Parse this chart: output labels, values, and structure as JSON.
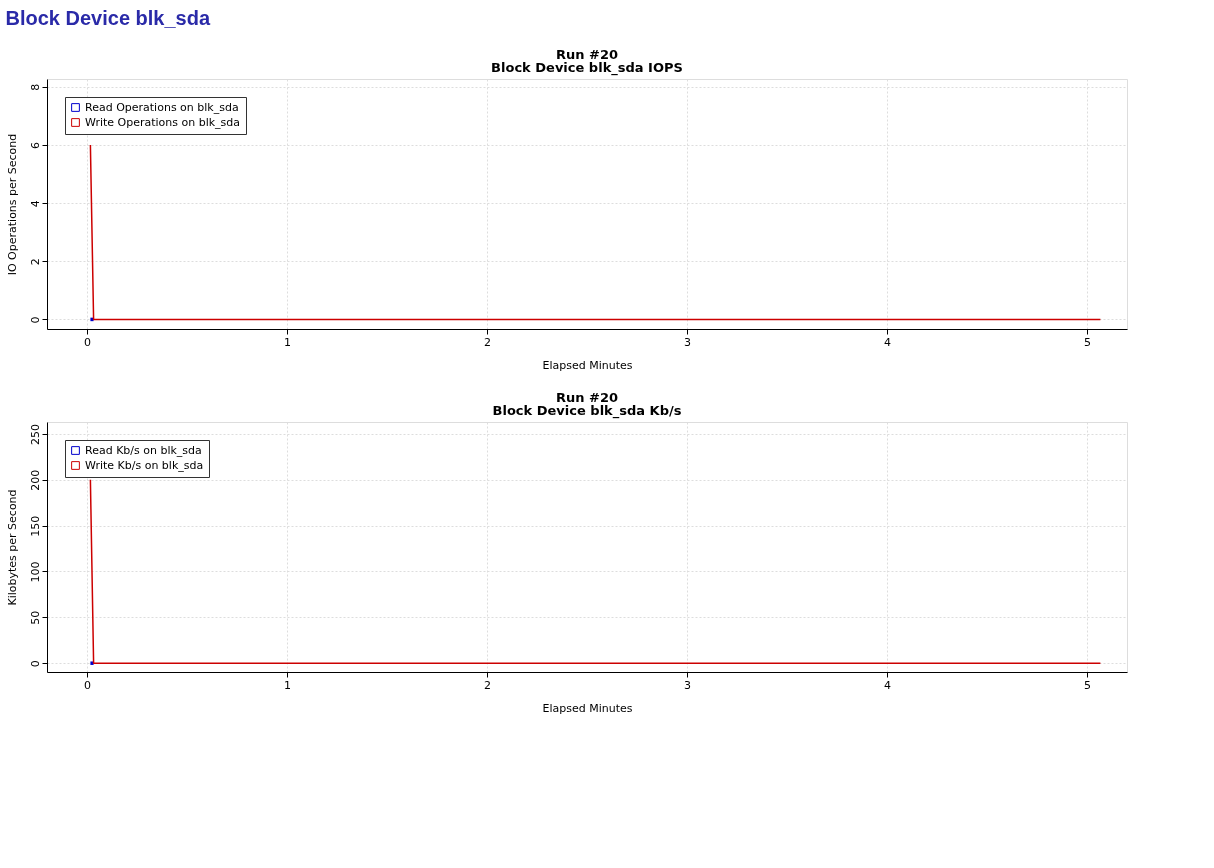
{
  "chart_data": [
    {
      "type": "line",
      "title": "Run #20",
      "subtitle": "Block Device blk_sda IOPS",
      "xlabel": "Elapsed Minutes",
      "ylabel": "IO Operations per Second",
      "annotations": [
        "Block Device blk_sda"
      ],
      "x": [
        0.017,
        0.033,
        5.067
      ],
      "series": [
        {
          "name": "Read Operations on blk_sda",
          "color": "#0000cc",
          "values": [
            0,
            0,
            null
          ]
        },
        {
          "name": "Write Operations on blk_sda",
          "color": "#cc0000",
          "values": [
            6,
            0,
            0
          ]
        }
      ],
      "xlim": [
        -0.2,
        5.2
      ],
      "xticks": [
        0,
        1,
        2,
        3,
        4,
        5
      ],
      "ylim": [
        -0.33,
        8.27
      ],
      "yticks": [
        0,
        2,
        4,
        6,
        8
      ],
      "grid": true,
      "legend": "top left",
      "marker": "none",
      "line_style": "solid"
    },
    {
      "type": "line",
      "title": "Run #20",
      "subtitle": "Block Device blk_sda Kb/s",
      "xlabel": "Elapsed Minutes",
      "ylabel": "Kilobytes per Second",
      "x": [
        0.017,
        0.033,
        5.067
      ],
      "series": [
        {
          "name": "Read Kb/s on blk_sda",
          "color": "#0000cc",
          "values": [
            0,
            0,
            null
          ]
        },
        {
          "name": "Write Kb/s on blk_sda",
          "color": "#cc0000",
          "values": [
            200,
            0,
            0
          ]
        }
      ],
      "xlim": [
        -0.2,
        5.2
      ],
      "xticks": [
        0,
        1,
        2,
        3,
        4,
        5
      ],
      "ylim": [
        -9.6,
        263
      ],
      "yticks": [
        0,
        50,
        100,
        150,
        200,
        250
      ],
      "grid": true,
      "legend": "top left",
      "marker": "none",
      "line_style": "solid"
    }
  ]
}
